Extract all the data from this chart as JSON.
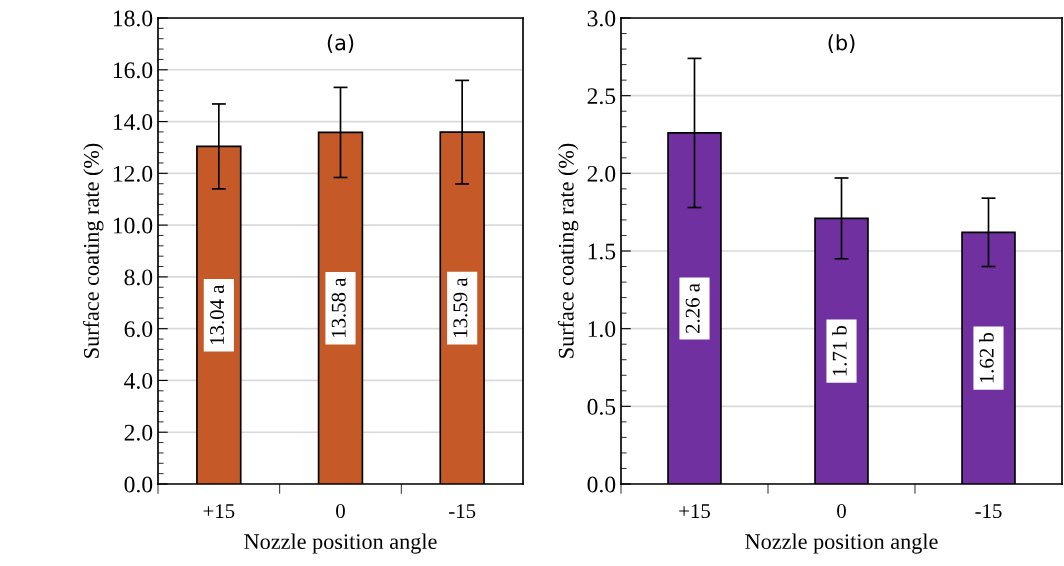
{
  "chart_data": [
    {
      "type": "bar",
      "title": "(a)",
      "xlabel": "Nozzle position angle",
      "ylabel": "Surface coating rate (%)",
      "categories": [
        "+15",
        "0",
        "-15"
      ],
      "values": [
        13.04,
        13.58,
        13.59
      ],
      "errors": [
        1.64,
        1.74,
        2.0
      ],
      "value_labels": [
        "13.04 a",
        "13.58 a",
        "13.59 a"
      ],
      "color": "#c55a28",
      "ylim": [
        0,
        18
      ],
      "yticks": [
        {
          "value": 0,
          "label": "0.0"
        },
        {
          "value": 2,
          "label": "2.0"
        },
        {
          "value": 4,
          "label": "4.0"
        },
        {
          "value": 6,
          "label": "6.0"
        },
        {
          "value": 8,
          "label": "8.0"
        },
        {
          "value": 10,
          "label": "10.0"
        },
        {
          "value": 12,
          "label": "12.0"
        },
        {
          "value": 14,
          "label": "14.0"
        },
        {
          "value": 16,
          "label": "16.0"
        },
        {
          "value": 18,
          "label": "18.0"
        }
      ],
      "grid": "y"
    },
    {
      "type": "bar",
      "title": "(b)",
      "xlabel": "Nozzle position angle",
      "ylabel": "Surface coating rate (%)",
      "categories": [
        "+15",
        "0",
        "-15"
      ],
      "values": [
        2.26,
        1.71,
        1.62
      ],
      "errors": [
        0.48,
        0.26,
        0.22
      ],
      "value_labels": [
        "2.26 a",
        "1.71 b",
        "1.62 b"
      ],
      "color": "#7030a0",
      "ylim": [
        0,
        3
      ],
      "yticks": [
        {
          "value": 0,
          "label": "0.0"
        },
        {
          "value": 0.5,
          "label": "0.5"
        },
        {
          "value": 1,
          "label": "1.0"
        },
        {
          "value": 1.5,
          "label": "1.5"
        },
        {
          "value": 2,
          "label": "2.0"
        },
        {
          "value": 2.5,
          "label": "2.5"
        },
        {
          "value": 3,
          "label": "3.0"
        }
      ],
      "grid": "y"
    }
  ]
}
